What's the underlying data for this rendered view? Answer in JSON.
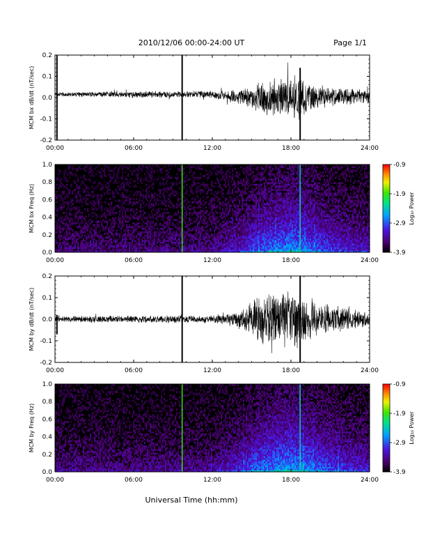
{
  "header": {
    "title": "2010/12/06  00:00-24:00 UT",
    "page": "Page 1/1"
  },
  "xlabel": "Universal Time (hh:mm)",
  "colors": {
    "waveform": "#000000",
    "spectrogram_background": "#000000"
  },
  "chart_data": [
    {
      "type": "line",
      "title": "",
      "ylabel": "MCM bx dB/dt (nT/sec)",
      "xlim": [
        0,
        24
      ],
      "ylim": [
        -0.2,
        0.2
      ],
      "x_ticks": [
        "00:00",
        "06:00",
        "12:00",
        "18:00",
        "24:00"
      ],
      "y_ticks": [
        "-0.2",
        "-0.1",
        "0.0",
        "0.1",
        "0.2"
      ],
      "envelope": [
        {
          "t": 0,
          "amp": 0.012
        },
        {
          "t": 2,
          "amp": 0.012
        },
        {
          "t": 4,
          "amp": 0.015
        },
        {
          "t": 6,
          "amp": 0.018
        },
        {
          "t": 8,
          "amp": 0.017
        },
        {
          "t": 10,
          "amp": 0.018
        },
        {
          "t": 12,
          "amp": 0.02
        },
        {
          "t": 13.5,
          "amp": 0.03
        },
        {
          "t": 15,
          "amp": 0.06
        },
        {
          "t": 16,
          "amp": 0.085
        },
        {
          "t": 17.5,
          "amp": 0.11
        },
        {
          "t": 18.5,
          "amp": 0.12
        },
        {
          "t": 19.5,
          "amp": 0.07
        },
        {
          "t": 21,
          "amp": 0.05
        },
        {
          "t": 24,
          "amp": 0.035
        }
      ],
      "baseline": [
        {
          "t": 0,
          "v": 0.015
        },
        {
          "t": 12,
          "v": 0.015
        },
        {
          "t": 15,
          "v": 0.0
        },
        {
          "t": 18,
          "v": 0.0
        },
        {
          "t": 24,
          "v": 0.005
        }
      ],
      "spikes": [
        {
          "t": 0.15,
          "min": -0.2,
          "max": 0.2
        },
        {
          "t": 9.7,
          "min": -0.2,
          "max": 0.2
        },
        {
          "t": 18.7,
          "min": -0.2,
          "max": 0.14
        }
      ]
    },
    {
      "type": "heatmap",
      "title": "",
      "ylabel": "MCM bx Freq (Hz)",
      "xlim": [
        0,
        24
      ],
      "ylim": [
        0,
        1.0
      ],
      "x_ticks": [
        "00:00",
        "06:00",
        "12:00",
        "18:00",
        "24:00"
      ],
      "y_ticks": [
        "0.0",
        "0.2",
        "0.4",
        "0.6",
        "0.8",
        "1.0"
      ],
      "colorbar": {
        "label": "Log₁₀ Power",
        "range": [
          -3.9,
          -0.9
        ],
        "ticks": [
          "-0.9",
          "-1.9",
          "-2.9",
          "-3.9"
        ]
      },
      "activity": [
        {
          "t": 0,
          "level": 0.25
        },
        {
          "t": 6,
          "level": 0.25
        },
        {
          "t": 12,
          "level": 0.3
        },
        {
          "t": 14,
          "level": 0.5
        },
        {
          "t": 16,
          "level": 0.75
        },
        {
          "t": 18,
          "level": 0.85
        },
        {
          "t": 20,
          "level": 0.7
        },
        {
          "t": 22,
          "level": 0.55
        },
        {
          "t": 24,
          "level": 0.45
        }
      ],
      "broadband_lines": [
        {
          "t": 9.7,
          "log_power": -1.9
        },
        {
          "t": 18.7,
          "log_power": -2.3
        }
      ]
    },
    {
      "type": "line",
      "title": "",
      "ylabel": "MCM by dB/dt (nT/sec)",
      "xlim": [
        0,
        24
      ],
      "ylim": [
        -0.2,
        0.2
      ],
      "x_ticks": [
        "00:00",
        "06:00",
        "12:00",
        "18:00",
        "24:00"
      ],
      "y_ticks": [
        "-0.2",
        "-0.1",
        "0.0",
        "0.1",
        "0.2"
      ],
      "envelope": [
        {
          "t": 0,
          "amp": 0.015
        },
        {
          "t": 3,
          "amp": 0.017
        },
        {
          "t": 6,
          "amp": 0.02
        },
        {
          "t": 9,
          "amp": 0.02
        },
        {
          "t": 12,
          "amp": 0.02
        },
        {
          "t": 13.5,
          "amp": 0.035
        },
        {
          "t": 14.5,
          "amp": 0.07
        },
        {
          "t": 15.5,
          "amp": 0.12
        },
        {
          "t": 17,
          "amp": 0.14
        },
        {
          "t": 18.5,
          "amp": 0.15
        },
        {
          "t": 19.5,
          "amp": 0.1
        },
        {
          "t": 21,
          "amp": 0.07
        },
        {
          "t": 24,
          "amp": 0.035
        }
      ],
      "baseline": [
        {
          "t": 0,
          "v": 0.0
        },
        {
          "t": 24,
          "v": 0.0
        }
      ],
      "spikes": [
        {
          "t": 0.15,
          "min": -0.07,
          "max": 0.02
        },
        {
          "t": 9.7,
          "min": -0.2,
          "max": 0.2
        },
        {
          "t": 18.7,
          "min": -0.2,
          "max": 0.2
        }
      ]
    },
    {
      "type": "heatmap",
      "title": "",
      "ylabel": "MCM by Freq (Hz)",
      "xlim": [
        0,
        24
      ],
      "ylim": [
        0,
        1.0
      ],
      "x_ticks": [
        "00:00",
        "06:00",
        "12:00",
        "18:00",
        "24:00"
      ],
      "y_ticks": [
        "0.0",
        "0.2",
        "0.4",
        "0.6",
        "0.8",
        "1.0"
      ],
      "colorbar": {
        "label": "Log₁₀ Power",
        "range": [
          -3.9,
          -0.9
        ],
        "ticks": [
          "-0.9",
          "-1.9",
          "-2.9",
          "-3.9"
        ]
      },
      "activity": [
        {
          "t": 0,
          "level": 0.3
        },
        {
          "t": 6,
          "level": 0.3
        },
        {
          "t": 12,
          "level": 0.35
        },
        {
          "t": 14,
          "level": 0.55
        },
        {
          "t": 16,
          "level": 0.8
        },
        {
          "t": 18,
          "level": 0.9
        },
        {
          "t": 20,
          "level": 0.75
        },
        {
          "t": 22,
          "level": 0.6
        },
        {
          "t": 24,
          "level": 0.5
        }
      ],
      "broadband_lines": [
        {
          "t": 9.7,
          "log_power": -1.9
        },
        {
          "t": 18.7,
          "log_power": -2.3
        }
      ]
    }
  ]
}
